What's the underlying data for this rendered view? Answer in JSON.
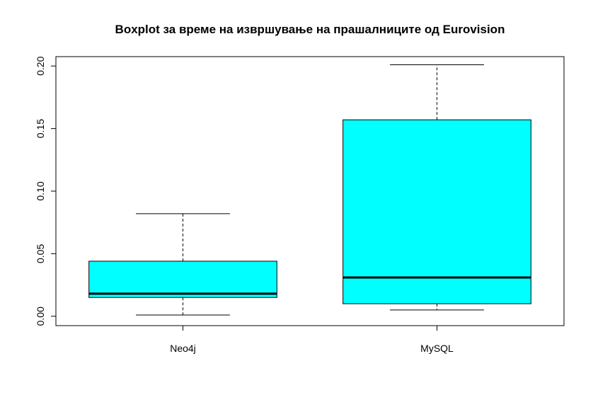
{
  "chart_data": {
    "type": "box",
    "title": "Boxplot за  време на извршување на прашалниците од Eurovision",
    "xlabel": "",
    "ylabel": "",
    "categories": [
      "Neo4j",
      "MySQL"
    ],
    "boxes": [
      {
        "category": "Neo4j",
        "min": 0.001,
        "q1": 0.015,
        "median": 0.018,
        "q3": 0.044,
        "max": 0.082
      },
      {
        "category": "MySQL",
        "min": 0.005,
        "q1": 0.01,
        "median": 0.031,
        "q3": 0.157,
        "max": 0.201
      }
    ],
    "ylim": [
      -0.0075,
      0.2075
    ],
    "yticks": [
      0.0,
      0.05,
      0.1,
      0.15,
      0.2
    ],
    "ytick_labels": [
      "0.00",
      "0.05",
      "0.10",
      "0.15",
      "0.20"
    ],
    "grid": false,
    "legend": "none",
    "colors": {
      "box_fill": "#00FFFF",
      "stroke": "#000000"
    }
  }
}
